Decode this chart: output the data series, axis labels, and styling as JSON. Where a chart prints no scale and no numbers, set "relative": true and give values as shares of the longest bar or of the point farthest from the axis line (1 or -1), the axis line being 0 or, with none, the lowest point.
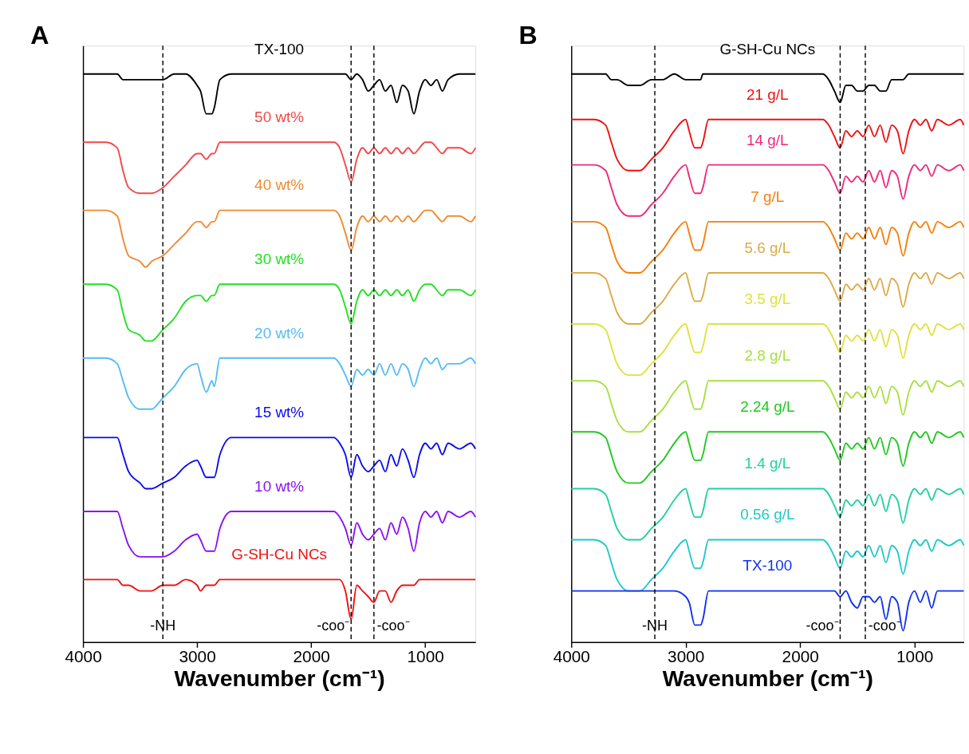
{
  "chart_data": [
    {
      "type": "line",
      "title": "A",
      "xlabel": "Wavenumber (cm⁻¹)",
      "relative": true,
      "grid": false,
      "legend": false,
      "xlim": [
        4000,
        560
      ],
      "xticks": [
        4000,
        3000,
        2000,
        1000
      ],
      "x": [
        4000,
        3800,
        3700,
        3650,
        3600,
        3500,
        3450,
        3400,
        3300,
        3200,
        3100,
        3000,
        2970,
        2920,
        2870,
        2850,
        2800,
        2700,
        2000,
        1800,
        1750,
        1700,
        1650,
        1600,
        1550,
        1500,
        1450,
        1400,
        1350,
        1300,
        1250,
        1200,
        1150,
        1100,
        1050,
        1000,
        950,
        900,
        850,
        800,
        700,
        600,
        560
      ],
      "ref_lines": [
        {
          "axis": "x",
          "value": 3300,
          "label": "-NH",
          "line_style": "dashed",
          "color": "#000000"
        },
        {
          "axis": "x",
          "value": 1650,
          "label": "-coo⁻",
          "line_style": "dashed",
          "color": "#000000"
        },
        {
          "axis": "x",
          "value": 1450,
          "label": "-coo⁻",
          "line_style": "dashed",
          "color": "#000000"
        }
      ],
      "series": [
        {
          "name": "TX-100",
          "color": "#000000",
          "values": [
            1.0,
            1.0,
            1.0,
            0.99,
            0.99,
            0.99,
            0.99,
            0.99,
            0.99,
            1.0,
            1.0,
            0.98,
            0.97,
            0.93,
            0.93,
            0.94,
            0.99,
            1.0,
            1.0,
            1.0,
            1.0,
            1.0,
            0.99,
            1.0,
            0.99,
            0.97,
            0.98,
            0.99,
            0.97,
            0.98,
            0.95,
            0.98,
            0.97,
            0.93,
            0.97,
            0.99,
            0.98,
            0.99,
            0.97,
            0.99,
            1.0,
            1.0,
            1.0
          ]
        },
        {
          "name": "50 wt%",
          "color": "#f04848",
          "values": [
            0.88,
            0.88,
            0.87,
            0.83,
            0.8,
            0.79,
            0.79,
            0.79,
            0.8,
            0.82,
            0.84,
            0.86,
            0.86,
            0.85,
            0.86,
            0.86,
            0.88,
            0.88,
            0.88,
            0.88,
            0.87,
            0.84,
            0.81,
            0.85,
            0.87,
            0.86,
            0.87,
            0.86,
            0.87,
            0.86,
            0.87,
            0.86,
            0.87,
            0.86,
            0.87,
            0.88,
            0.88,
            0.87,
            0.86,
            0.87,
            0.87,
            0.86,
            0.87
          ]
        },
        {
          "name": "40 wt%",
          "color": "#f08a30",
          "values": [
            0.76,
            0.76,
            0.75,
            0.71,
            0.68,
            0.67,
            0.66,
            0.67,
            0.68,
            0.7,
            0.72,
            0.74,
            0.74,
            0.73,
            0.74,
            0.74,
            0.76,
            0.76,
            0.76,
            0.76,
            0.75,
            0.72,
            0.69,
            0.73,
            0.75,
            0.74,
            0.75,
            0.74,
            0.75,
            0.74,
            0.75,
            0.74,
            0.75,
            0.74,
            0.75,
            0.76,
            0.76,
            0.75,
            0.74,
            0.75,
            0.75,
            0.74,
            0.75
          ]
        },
        {
          "name": "30 wt%",
          "color": "#22e022",
          "values": [
            0.63,
            0.63,
            0.62,
            0.58,
            0.55,
            0.54,
            0.53,
            0.53,
            0.55,
            0.57,
            0.6,
            0.61,
            0.61,
            0.6,
            0.61,
            0.61,
            0.63,
            0.63,
            0.63,
            0.63,
            0.62,
            0.59,
            0.56,
            0.6,
            0.62,
            0.61,
            0.62,
            0.61,
            0.62,
            0.61,
            0.62,
            0.61,
            0.62,
            0.6,
            0.62,
            0.63,
            0.63,
            0.62,
            0.61,
            0.62,
            0.62,
            0.61,
            0.62
          ]
        },
        {
          "name": "20 wt%",
          "color": "#55bbf5",
          "values": [
            0.5,
            0.5,
            0.49,
            0.46,
            0.43,
            0.41,
            0.41,
            0.41,
            0.43,
            0.45,
            0.48,
            0.49,
            0.47,
            0.44,
            0.46,
            0.45,
            0.5,
            0.5,
            0.5,
            0.5,
            0.49,
            0.47,
            0.45,
            0.48,
            0.47,
            0.48,
            0.47,
            0.49,
            0.47,
            0.49,
            0.47,
            0.49,
            0.48,
            0.45,
            0.48,
            0.5,
            0.49,
            0.5,
            0.48,
            0.49,
            0.49,
            0.5,
            0.49
          ]
        },
        {
          "name": "15 wt%",
          "color": "#0a0af0",
          "values": [
            0.36,
            0.36,
            0.36,
            0.33,
            0.3,
            0.28,
            0.27,
            0.27,
            0.28,
            0.29,
            0.31,
            0.32,
            0.31,
            0.29,
            0.29,
            0.29,
            0.33,
            0.36,
            0.36,
            0.36,
            0.35,
            0.33,
            0.29,
            0.33,
            0.31,
            0.3,
            0.31,
            0.32,
            0.3,
            0.33,
            0.31,
            0.34,
            0.32,
            0.29,
            0.33,
            0.35,
            0.34,
            0.35,
            0.33,
            0.35,
            0.34,
            0.35,
            0.34
          ]
        },
        {
          "name": "10 wt%",
          "color": "#8a10f0",
          "values": [
            0.23,
            0.23,
            0.23,
            0.2,
            0.17,
            0.15,
            0.15,
            0.15,
            0.15,
            0.16,
            0.18,
            0.19,
            0.18,
            0.16,
            0.16,
            0.16,
            0.2,
            0.23,
            0.23,
            0.23,
            0.22,
            0.2,
            0.17,
            0.21,
            0.19,
            0.18,
            0.19,
            0.2,
            0.18,
            0.21,
            0.19,
            0.22,
            0.2,
            0.16,
            0.21,
            0.23,
            0.22,
            0.23,
            0.21,
            0.23,
            0.22,
            0.23,
            0.22
          ]
        },
        {
          "name": "G-SH-Cu NCs",
          "color": "#f01010",
          "values": [
            0.11,
            0.11,
            0.11,
            0.1,
            0.1,
            0.09,
            0.09,
            0.09,
            0.1,
            0.1,
            0.11,
            0.1,
            0.09,
            0.1,
            0.1,
            0.1,
            0.11,
            0.11,
            0.11,
            0.11,
            0.11,
            0.09,
            0.04,
            0.1,
            0.09,
            0.08,
            0.07,
            0.09,
            0.09,
            0.07,
            0.09,
            0.1,
            0.1,
            0.1,
            0.11,
            0.11,
            0.11,
            0.11,
            0.11,
            0.11,
            0.11,
            0.11,
            0.11
          ]
        }
      ]
    },
    {
      "type": "line",
      "title": "B",
      "xlabel": "Wavenumber (cm⁻¹)",
      "relative": true,
      "grid": false,
      "legend": false,
      "xlim": [
        4000,
        570
      ],
      "xticks": [
        4000,
        3000,
        2000,
        1000
      ],
      "x": [
        4000,
        3800,
        3700,
        3650,
        3600,
        3500,
        3450,
        3400,
        3300,
        3200,
        3100,
        3000,
        2970,
        2920,
        2870,
        2850,
        2800,
        2700,
        2000,
        1800,
        1750,
        1700,
        1650,
        1600,
        1550,
        1500,
        1450,
        1400,
        1350,
        1300,
        1250,
        1200,
        1150,
        1100,
        1050,
        1000,
        950,
        900,
        850,
        800,
        700,
        600,
        570
      ],
      "ref_lines": [
        {
          "axis": "x",
          "value": 3270,
          "label": "-NH",
          "line_style": "dashed",
          "color": "#000000"
        },
        {
          "axis": "x",
          "value": 1650,
          "label": "-coo⁻",
          "line_style": "dashed",
          "color": "#000000"
        },
        {
          "axis": "x",
          "value": 1430,
          "label": "-coo⁻",
          "line_style": "dashed",
          "color": "#000000"
        }
      ],
      "series": [
        {
          "name": "G-SH-Cu NCs",
          "color": "#000000",
          "values": [
            1,
            1,
            1,
            0.99,
            0.99,
            0.98,
            0.98,
            0.98,
            0.99,
            0.99,
            1,
            0.99,
            0.99,
            0.99,
            0.99,
            1,
            1,
            1,
            1,
            1,
            0.99,
            0.97,
            0.95,
            0.98,
            0.98,
            0.97,
            0.97,
            0.98,
            0.98,
            0.97,
            0.97,
            0.99,
            0.99,
            0.99,
            1,
            1,
            1,
            1,
            1,
            1,
            1,
            1,
            1
          ]
        },
        {
          "name": "21 g/L",
          "color": "#f01010",
          "values": [
            0.92,
            0.92,
            0.91,
            0.88,
            0.85,
            0.83,
            0.83,
            0.83,
            0.85,
            0.87,
            0.9,
            0.92,
            0.9,
            0.87,
            0.87,
            0.88,
            0.92,
            0.92,
            0.92,
            0.92,
            0.91,
            0.89,
            0.87,
            0.9,
            0.89,
            0.9,
            0.89,
            0.91,
            0.89,
            0.91,
            0.88,
            0.91,
            0.9,
            0.86,
            0.9,
            0.92,
            0.91,
            0.92,
            0.9,
            0.92,
            0.91,
            0.92,
            0.91
          ]
        },
        {
          "name": "14 g/L",
          "color": "#f0287a",
          "values": [
            0.84,
            0.84,
            0.83,
            0.8,
            0.77,
            0.75,
            0.75,
            0.75,
            0.77,
            0.79,
            0.82,
            0.84,
            0.82,
            0.79,
            0.79,
            0.8,
            0.84,
            0.84,
            0.84,
            0.84,
            0.83,
            0.81,
            0.79,
            0.82,
            0.81,
            0.82,
            0.81,
            0.83,
            0.81,
            0.83,
            0.8,
            0.83,
            0.82,
            0.78,
            0.82,
            0.84,
            0.83,
            0.84,
            0.82,
            0.84,
            0.83,
            0.84,
            0.83
          ]
        },
        {
          "name": "7 g/L",
          "color": "#f57f0a",
          "values": [
            0.74,
            0.74,
            0.73,
            0.7,
            0.67,
            0.65,
            0.65,
            0.65,
            0.67,
            0.69,
            0.72,
            0.74,
            0.72,
            0.69,
            0.69,
            0.7,
            0.74,
            0.74,
            0.74,
            0.74,
            0.73,
            0.71,
            0.69,
            0.72,
            0.71,
            0.72,
            0.71,
            0.73,
            0.71,
            0.73,
            0.7,
            0.73,
            0.72,
            0.68,
            0.72,
            0.74,
            0.73,
            0.74,
            0.72,
            0.74,
            0.73,
            0.74,
            0.73
          ]
        },
        {
          "name": "5.6 g/L",
          "color": "#dcaa48",
          "values": [
            0.65,
            0.65,
            0.64,
            0.61,
            0.58,
            0.56,
            0.56,
            0.56,
            0.58,
            0.6,
            0.63,
            0.65,
            0.63,
            0.6,
            0.6,
            0.61,
            0.65,
            0.65,
            0.65,
            0.65,
            0.64,
            0.62,
            0.6,
            0.63,
            0.62,
            0.63,
            0.62,
            0.64,
            0.62,
            0.64,
            0.61,
            0.64,
            0.63,
            0.59,
            0.63,
            0.65,
            0.64,
            0.65,
            0.63,
            0.65,
            0.64,
            0.65,
            0.64
          ]
        },
        {
          "name": "3.5 g/L",
          "color": "#e0e040",
          "values": [
            0.56,
            0.56,
            0.55,
            0.52,
            0.49,
            0.47,
            0.47,
            0.47,
            0.49,
            0.51,
            0.54,
            0.56,
            0.54,
            0.51,
            0.51,
            0.52,
            0.56,
            0.56,
            0.56,
            0.56,
            0.55,
            0.53,
            0.51,
            0.54,
            0.53,
            0.54,
            0.53,
            0.55,
            0.53,
            0.55,
            0.52,
            0.55,
            0.54,
            0.5,
            0.54,
            0.56,
            0.55,
            0.56,
            0.54,
            0.56,
            0.55,
            0.56,
            0.55
          ]
        },
        {
          "name": "2.8 g/L",
          "color": "#a8e040",
          "values": [
            0.46,
            0.46,
            0.45,
            0.42,
            0.39,
            0.37,
            0.37,
            0.37,
            0.39,
            0.41,
            0.44,
            0.46,
            0.44,
            0.41,
            0.41,
            0.42,
            0.46,
            0.46,
            0.46,
            0.46,
            0.45,
            0.43,
            0.41,
            0.44,
            0.43,
            0.44,
            0.43,
            0.45,
            0.43,
            0.45,
            0.42,
            0.45,
            0.44,
            0.4,
            0.44,
            0.46,
            0.45,
            0.46,
            0.44,
            0.46,
            0.45,
            0.46,
            0.45
          ]
        },
        {
          "name": "2.24 g/L",
          "color": "#20c820",
          "values": [
            0.37,
            0.37,
            0.36,
            0.33,
            0.3,
            0.28,
            0.28,
            0.28,
            0.3,
            0.32,
            0.35,
            0.37,
            0.35,
            0.32,
            0.32,
            0.33,
            0.37,
            0.37,
            0.37,
            0.37,
            0.36,
            0.34,
            0.32,
            0.35,
            0.34,
            0.35,
            0.34,
            0.36,
            0.34,
            0.36,
            0.33,
            0.36,
            0.35,
            0.31,
            0.35,
            0.37,
            0.36,
            0.37,
            0.35,
            0.37,
            0.36,
            0.37,
            0.36
          ]
        },
        {
          "name": "1.4 g/L",
          "color": "#20d0a0",
          "values": [
            0.27,
            0.27,
            0.26,
            0.23,
            0.2,
            0.18,
            0.18,
            0.18,
            0.2,
            0.22,
            0.25,
            0.27,
            0.25,
            0.22,
            0.22,
            0.23,
            0.27,
            0.27,
            0.27,
            0.27,
            0.26,
            0.24,
            0.22,
            0.25,
            0.24,
            0.25,
            0.24,
            0.26,
            0.24,
            0.26,
            0.23,
            0.26,
            0.25,
            0.21,
            0.25,
            0.27,
            0.26,
            0.27,
            0.25,
            0.27,
            0.26,
            0.27,
            0.26
          ]
        },
        {
          "name": "0.56 g/L",
          "color": "#20c8c8",
          "values": [
            0.18,
            0.18,
            0.17,
            0.14,
            0.11,
            0.09,
            0.09,
            0.09,
            0.11,
            0.13,
            0.16,
            0.18,
            0.16,
            0.13,
            0.13,
            0.14,
            0.18,
            0.18,
            0.18,
            0.18,
            0.17,
            0.15,
            0.13,
            0.16,
            0.15,
            0.16,
            0.15,
            0.17,
            0.15,
            0.17,
            0.14,
            0.17,
            0.16,
            0.12,
            0.16,
            0.18,
            0.17,
            0.18,
            0.16,
            0.18,
            0.17,
            0.18,
            0.17
          ]
        },
        {
          "name": "TX-100",
          "color": "#1030f0",
          "values": [
            0.09,
            0.09,
            0.09,
            0.09,
            0.09,
            0.09,
            0.09,
            0.09,
            0.09,
            0.09,
            0.09,
            0.08,
            0.07,
            0.03,
            0.03,
            0.04,
            0.09,
            0.09,
            0.09,
            0.09,
            0.09,
            0.09,
            0.08,
            0.09,
            0.07,
            0.06,
            0.08,
            0.08,
            0.07,
            0.08,
            0.04,
            0.08,
            0.07,
            0.02,
            0.07,
            0.09,
            0.07,
            0.09,
            0.06,
            0.09,
            0.09,
            0.09,
            0.09
          ]
        }
      ]
    }
  ]
}
